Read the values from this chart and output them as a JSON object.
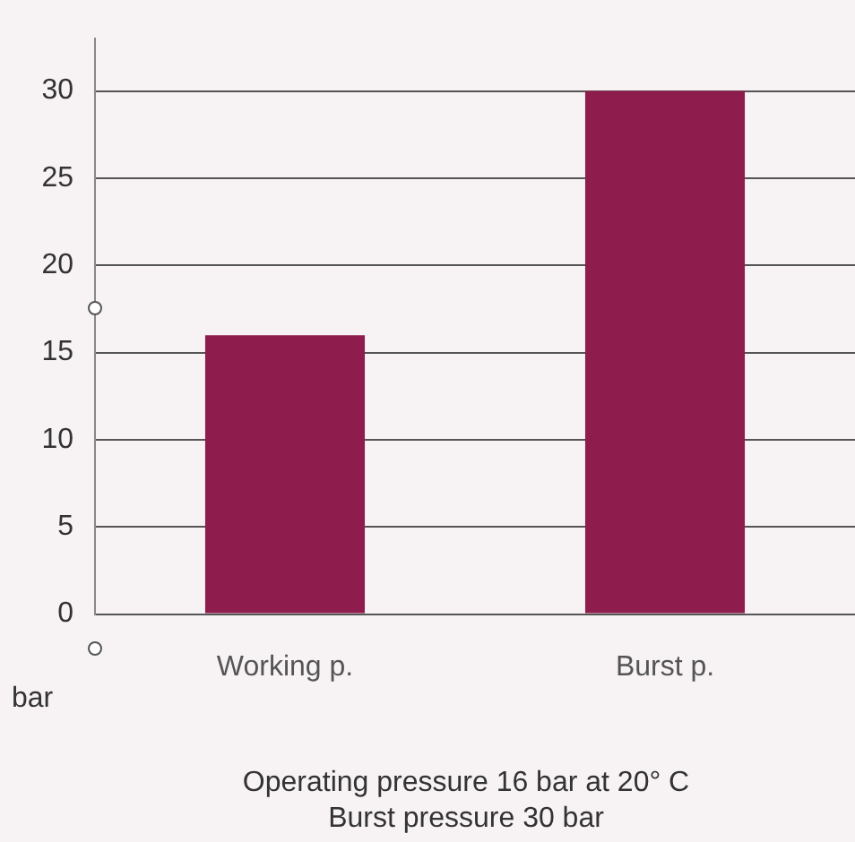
{
  "chart_data": {
    "type": "bar",
    "categories": [
      "Working p.",
      "Burst p."
    ],
    "values": [
      16,
      30
    ],
    "color": "#8e1c4d",
    "ylim": [
      0,
      33
    ],
    "yticks": [
      0,
      5,
      10,
      15,
      20,
      25,
      30
    ],
    "ylabel": "bar",
    "grid": "y",
    "legend": false,
    "annotations": [
      "Operating pressure 16 bar at 20° C",
      "Burst pressure 30 bar"
    ]
  }
}
